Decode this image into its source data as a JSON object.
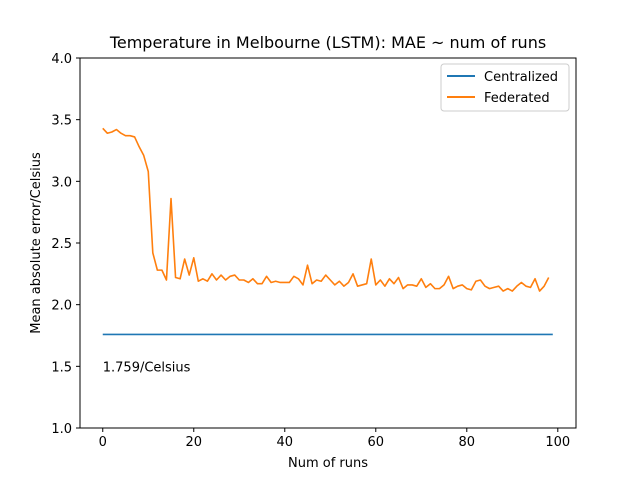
{
  "chart_data": {
    "type": "line",
    "title": "Temperature in Melbourne (LSTM): MAE ~ num of runs",
    "xlabel": "Num of runs",
    "ylabel": "Mean absolute error/Celsius",
    "xlim": [
      -5,
      104
    ],
    "ylim": [
      1.0,
      4.0
    ],
    "xticks": [
      0,
      20,
      40,
      60,
      80,
      100
    ],
    "yticks": [
      1.0,
      1.5,
      2.0,
      2.5,
      3.0,
      3.5,
      4.0
    ],
    "ytick_labels": [
      "1.0",
      "1.5",
      "2.0",
      "2.5",
      "3.0",
      "3.5",
      "4.0"
    ],
    "grid": false,
    "legend_position": "top-right",
    "annotation": {
      "text": "1.759/Celsius",
      "x": 0,
      "y": 1.5
    },
    "series": [
      {
        "name": "Centralized",
        "color": "#1f77b4",
        "x": [
          0,
          98.9
        ],
        "y": [
          1.759,
          1.759
        ]
      },
      {
        "name": "Federated",
        "color": "#ff7f0e",
        "x": [
          0,
          1,
          2,
          3,
          4,
          5,
          6,
          7,
          8,
          9,
          10,
          11,
          12,
          13,
          14,
          15,
          16,
          17,
          18,
          19,
          20,
          21,
          22,
          23,
          24,
          25,
          26,
          27,
          28,
          29,
          30,
          31,
          32,
          33,
          34,
          35,
          36,
          37,
          38,
          39,
          40,
          41,
          42,
          43,
          44,
          45,
          46,
          47,
          48,
          49,
          50,
          51,
          52,
          53,
          54,
          55,
          56,
          57,
          58,
          59,
          60,
          61,
          62,
          63,
          64,
          65,
          66,
          67,
          68,
          69,
          70,
          71,
          72,
          73,
          74,
          75,
          76,
          77,
          78,
          79,
          80,
          81,
          82,
          83,
          84,
          85,
          86,
          87,
          88,
          89,
          90,
          91,
          92,
          93,
          94,
          95,
          96,
          97,
          98
        ],
        "y": [
          3.43,
          3.39,
          3.4,
          3.42,
          3.39,
          3.37,
          3.37,
          3.36,
          3.28,
          3.21,
          3.08,
          2.42,
          2.28,
          2.28,
          2.2,
          2.86,
          2.22,
          2.21,
          2.37,
          2.24,
          2.38,
          2.19,
          2.21,
          2.19,
          2.25,
          2.2,
          2.24,
          2.2,
          2.23,
          2.24,
          2.2,
          2.2,
          2.18,
          2.21,
          2.17,
          2.17,
          2.23,
          2.18,
          2.19,
          2.18,
          2.18,
          2.18,
          2.23,
          2.21,
          2.16,
          2.32,
          2.17,
          2.2,
          2.19,
          2.24,
          2.2,
          2.16,
          2.19,
          2.15,
          2.18,
          2.25,
          2.15,
          2.16,
          2.17,
          2.37,
          2.16,
          2.2,
          2.15,
          2.21,
          2.17,
          2.22,
          2.13,
          2.16,
          2.16,
          2.15,
          2.21,
          2.14,
          2.17,
          2.13,
          2.13,
          2.16,
          2.23,
          2.13,
          2.15,
          2.16,
          2.13,
          2.12,
          2.19,
          2.2,
          2.15,
          2.13,
          2.14,
          2.15,
          2.11,
          2.13,
          2.11,
          2.15,
          2.18,
          2.15,
          2.14,
          2.21,
          2.11,
          2.15,
          2.22
        ]
      }
    ]
  }
}
